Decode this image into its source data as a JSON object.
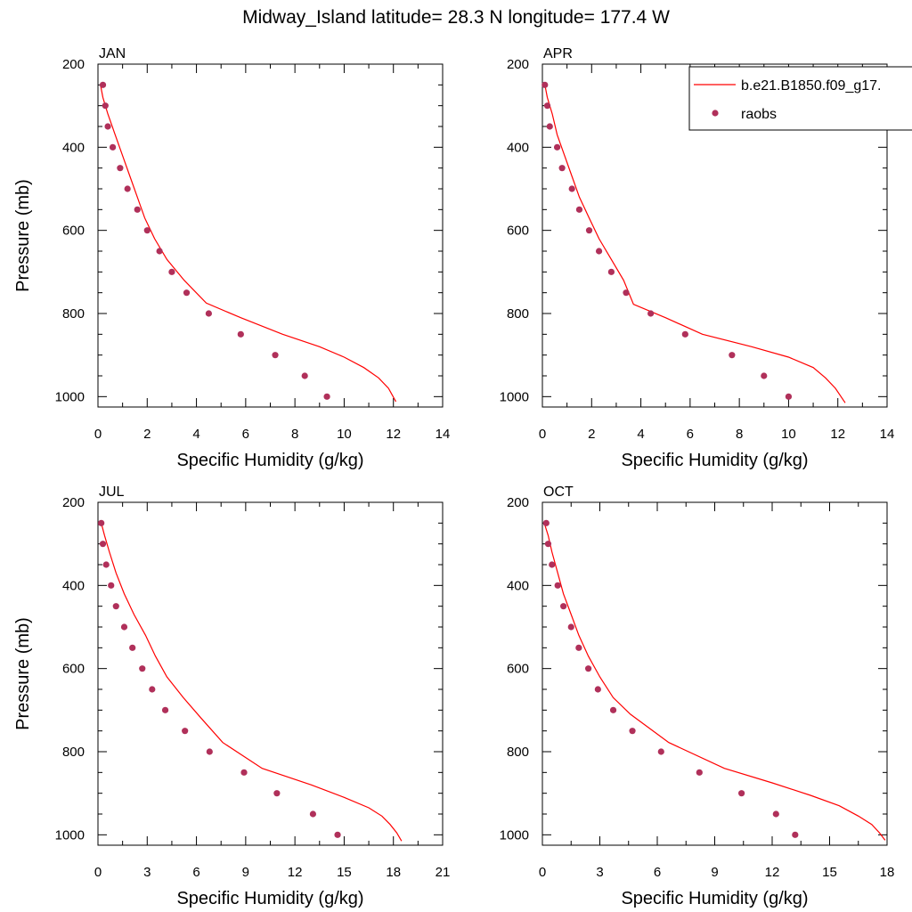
{
  "figure_title": "Midway_Island  latitude= 28.3 N longitude= 177.4 W",
  "legend": {
    "model_label": "b.e21.B1850.f09_g17.",
    "obs_label": "raobs"
  },
  "colors": {
    "model_line": "#ff0000",
    "obs_marker": "#b0305a"
  },
  "chart_data": [
    {
      "type": "line",
      "panel": "JAN",
      "xlabel": "Specific Humidity (g/kg)",
      "ylabel": "Pressure (mb)",
      "xlim": [
        0,
        14
      ],
      "ylim": [
        200,
        1025
      ],
      "xticks": [
        0,
        2,
        4,
        6,
        8,
        10,
        12,
        14
      ],
      "yticks": [
        200,
        400,
        600,
        800,
        1000
      ],
      "series": [
        {
          "name": "b.e21.B1850.f09_g17.",
          "style": "line",
          "x": [
            0.1,
            0.2,
            0.4,
            0.7,
            1.0,
            1.3,
            1.6,
            1.9,
            2.3,
            2.8,
            3.5,
            4.4,
            5.8,
            7.5,
            9.0,
            10.0,
            10.8,
            11.4,
            11.8,
            12.1
          ],
          "y": [
            250,
            280,
            320,
            370,
            420,
            470,
            520,
            570,
            620,
            670,
            720,
            775,
            810,
            850,
            880,
            905,
            930,
            955,
            980,
            1012
          ]
        },
        {
          "name": "raobs",
          "style": "markers",
          "x": [
            0.2,
            0.3,
            0.4,
            0.6,
            0.9,
            1.2,
            1.6,
            2.0,
            2.5,
            3.0,
            3.6,
            4.5,
            5.8,
            7.2,
            8.4,
            9.3
          ],
          "y": [
            250,
            300,
            350,
            400,
            450,
            500,
            550,
            600,
            650,
            700,
            750,
            800,
            850,
            900,
            950,
            1000
          ]
        }
      ]
    },
    {
      "type": "line",
      "panel": "APR",
      "xlabel": "Specific Humidity (g/kg)",
      "ylabel": "",
      "xlim": [
        0,
        14
      ],
      "ylim": [
        200,
        1025
      ],
      "xticks": [
        0,
        2,
        4,
        6,
        8,
        10,
        12,
        14
      ],
      "yticks": [
        200,
        400,
        600,
        800,
        1000
      ],
      "series": [
        {
          "name": "b.e21.B1850.f09_g17.",
          "style": "line",
          "x": [
            0.1,
            0.2,
            0.4,
            0.6,
            0.9,
            1.2,
            1.5,
            1.9,
            2.3,
            2.8,
            3.3,
            3.7,
            5.0,
            6.5,
            8.5,
            10.0,
            11.0,
            11.5,
            11.9,
            12.3
          ],
          "y": [
            250,
            280,
            320,
            370,
            420,
            470,
            520,
            570,
            620,
            670,
            720,
            778,
            810,
            850,
            880,
            905,
            930,
            955,
            980,
            1015
          ]
        },
        {
          "name": "raobs",
          "style": "markers",
          "x": [
            0.1,
            0.2,
            0.3,
            0.6,
            0.8,
            1.2,
            1.5,
            1.9,
            2.3,
            2.8,
            3.4,
            4.4,
            5.8,
            7.7,
            9.0,
            10.0
          ],
          "y": [
            250,
            300,
            350,
            400,
            450,
            500,
            550,
            600,
            650,
            700,
            750,
            800,
            850,
            900,
            950,
            1000
          ]
        }
      ]
    },
    {
      "type": "line",
      "panel": "JUL",
      "xlabel": "Specific Humidity (g/kg)",
      "ylabel": "Pressure (mb)",
      "xlim": [
        0,
        21
      ],
      "ylim": [
        200,
        1025
      ],
      "xticks": [
        0,
        3,
        6,
        9,
        12,
        15,
        18,
        21
      ],
      "yticks": [
        200,
        400,
        600,
        800,
        1000
      ],
      "series": [
        {
          "name": "b.e21.B1850.f09_g17.",
          "style": "line",
          "x": [
            0.2,
            0.4,
            0.7,
            1.1,
            1.6,
            2.2,
            2.9,
            3.5,
            4.2,
            5.2,
            6.3,
            7.6,
            10.0,
            13.0,
            15.0,
            16.5,
            17.3,
            17.8,
            18.2,
            18.5
          ],
          "y": [
            250,
            280,
            320,
            370,
            420,
            470,
            520,
            570,
            620,
            670,
            720,
            778,
            840,
            880,
            910,
            935,
            955,
            975,
            995,
            1015
          ]
        },
        {
          "name": "raobs",
          "style": "markers",
          "x": [
            0.2,
            0.3,
            0.5,
            0.8,
            1.1,
            1.6,
            2.1,
            2.7,
            3.3,
            4.1,
            5.3,
            6.8,
            8.9,
            10.9,
            13.1,
            14.6
          ],
          "y": [
            250,
            300,
            350,
            400,
            450,
            500,
            550,
            600,
            650,
            700,
            750,
            800,
            850,
            900,
            950,
            1000
          ]
        }
      ]
    },
    {
      "type": "line",
      "panel": "OCT",
      "xlabel": "Specific Humidity (g/kg)",
      "ylabel": "",
      "xlim": [
        0,
        18
      ],
      "ylim": [
        200,
        1025
      ],
      "xticks": [
        0,
        3,
        6,
        9,
        12,
        15,
        18
      ],
      "yticks": [
        200,
        400,
        600,
        800,
        1000
      ],
      "series": [
        {
          "name": "b.e21.B1850.f09_g17.",
          "style": "line",
          "x": [
            0.1,
            0.3,
            0.5,
            0.8,
            1.1,
            1.5,
            1.9,
            2.4,
            3.0,
            3.7,
            4.6,
            6.6,
            9.5,
            12.0,
            14.0,
            15.5,
            16.5,
            17.2,
            17.6,
            17.9
          ],
          "y": [
            250,
            280,
            320,
            370,
            420,
            470,
            520,
            570,
            620,
            670,
            710,
            778,
            840,
            875,
            905,
            930,
            955,
            975,
            995,
            1013
          ]
        },
        {
          "name": "raobs",
          "style": "markers",
          "x": [
            0.2,
            0.3,
            0.5,
            0.8,
            1.1,
            1.5,
            1.9,
            2.4,
            2.9,
            3.7,
            4.7,
            6.2,
            8.2,
            10.4,
            12.2,
            13.2
          ],
          "y": [
            250,
            300,
            350,
            400,
            450,
            500,
            550,
            600,
            650,
            700,
            750,
            800,
            850,
            900,
            950,
            1000
          ]
        }
      ]
    }
  ]
}
